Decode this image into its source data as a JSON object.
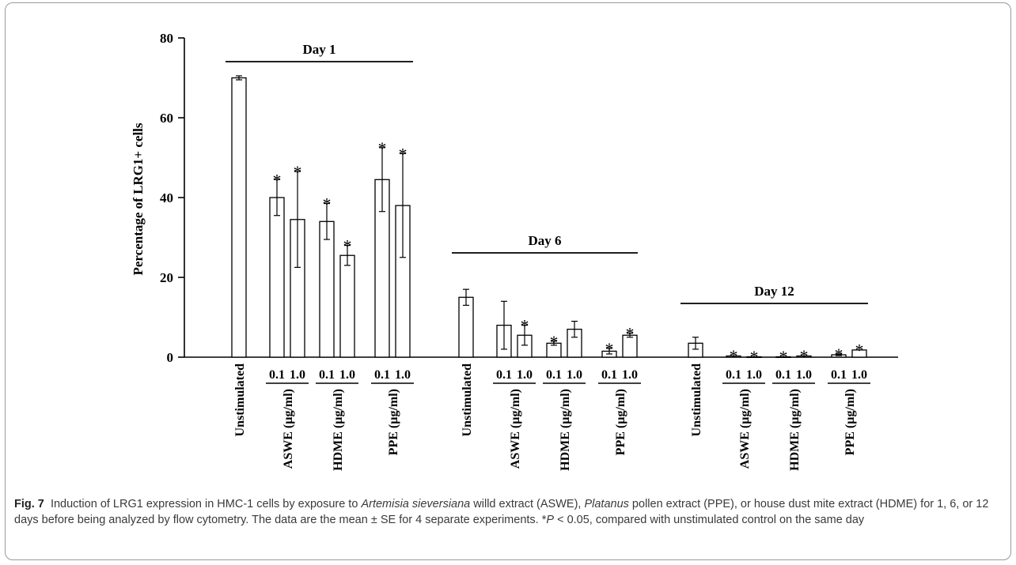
{
  "chart_data": {
    "type": "bar",
    "ylabel": "Percentage of LRG1+ cells",
    "ylim": [
      0,
      80
    ],
    "yticks": [
      0,
      20,
      40,
      60,
      80
    ],
    "groups": [
      {
        "label": "Day 1",
        "bars": [
          {
            "label": "Unstimulated",
            "value": 70,
            "err": 0.5,
            "sig": false
          },
          {
            "treatment": "ASWE (µg/ml)",
            "dose": "0.1",
            "value": 40,
            "err": 4.5,
            "sig": true
          },
          {
            "treatment": "ASWE (µg/ml)",
            "dose": "1.0",
            "value": 34.5,
            "err": 12,
            "sig": true
          },
          {
            "treatment": "HDME (µg/ml)",
            "dose": "0.1",
            "value": 34,
            "err": 4.5,
            "sig": true
          },
          {
            "treatment": "HDME (µg/ml)",
            "dose": "1.0",
            "value": 25.5,
            "err": 2.5,
            "sig": true
          },
          {
            "treatment": "PPE (µg/ml)",
            "dose": "0.1",
            "value": 44.5,
            "err": 8,
            "sig": true
          },
          {
            "treatment": "PPE (µg/ml)",
            "dose": "1.0",
            "value": 38,
            "err": 13,
            "sig": true
          }
        ]
      },
      {
        "label": "Day 6",
        "bars": [
          {
            "label": "Unstimulated",
            "value": 15,
            "err": 2,
            "sig": false
          },
          {
            "treatment": "ASWE (µg/ml)",
            "dose": "0.1",
            "value": 8,
            "err": 6,
            "sig": false
          },
          {
            "treatment": "ASWE (µg/ml)",
            "dose": "1.0",
            "value": 5.5,
            "err": 2.5,
            "sig": true
          },
          {
            "treatment": "HDME (µg/ml)",
            "dose": "0.1",
            "value": 3.5,
            "err": 0.5,
            "sig": true
          },
          {
            "treatment": "HDME (µg/ml)",
            "dose": "1.0",
            "value": 7,
            "err": 2,
            "sig": false
          },
          {
            "treatment": "PPE (µg/ml)",
            "dose": "0.1",
            "value": 1.5,
            "err": 0.7,
            "sig": true
          },
          {
            "treatment": "PPE (µg/ml)",
            "dose": "1.0",
            "value": 5.5,
            "err": 0.5,
            "sig": true
          }
        ]
      },
      {
        "label": "Day 12",
        "bars": [
          {
            "label": "Unstimulated",
            "value": 3.5,
            "err": 1.5,
            "sig": false
          },
          {
            "treatment": "ASWE (µg/ml)",
            "dose": "0.1",
            "value": 0.3,
            "err": 0.1,
            "sig": true
          },
          {
            "treatment": "ASWE (µg/ml)",
            "dose": "1.0",
            "value": 0.1,
            "err": 0.1,
            "sig": true
          },
          {
            "treatment": "HDME (µg/ml)",
            "dose": "0.1",
            "value": 0.1,
            "err": 0.1,
            "sig": true
          },
          {
            "treatment": "HDME (µg/ml)",
            "dose": "1.0",
            "value": 0.3,
            "err": 0.1,
            "sig": true
          },
          {
            "treatment": "PPE (µg/ml)",
            "dose": "0.1",
            "value": 0.6,
            "err": 0.2,
            "sig": true
          },
          {
            "treatment": "PPE (µg/ml)",
            "dose": "1.0",
            "value": 1.8,
            "err": 0.1,
            "sig": true
          }
        ]
      }
    ],
    "significance_marker": "*"
  },
  "caption": {
    "label": "Fig. 7",
    "parts": [
      {
        "text": "Induction of LRG1 expression in HMC-1 cells by exposure to ",
        "italic": false
      },
      {
        "text": "Artemisia sieversiana",
        "italic": true
      },
      {
        "text": " willd extract (ASWE), ",
        "italic": false
      },
      {
        "text": "Platanus",
        "italic": true
      },
      {
        "text": " pollen extract (PPE), or house dust mite extract (HDME) for 1, 6, or 12 days before being analyzed by flow cytometry. The data are the mean ± SE for 4 separate experiments. *",
        "italic": false
      },
      {
        "text": "P",
        "italic": true
      },
      {
        "text": " < 0.05, compared with unstimulated control on the same day",
        "italic": false
      }
    ]
  }
}
